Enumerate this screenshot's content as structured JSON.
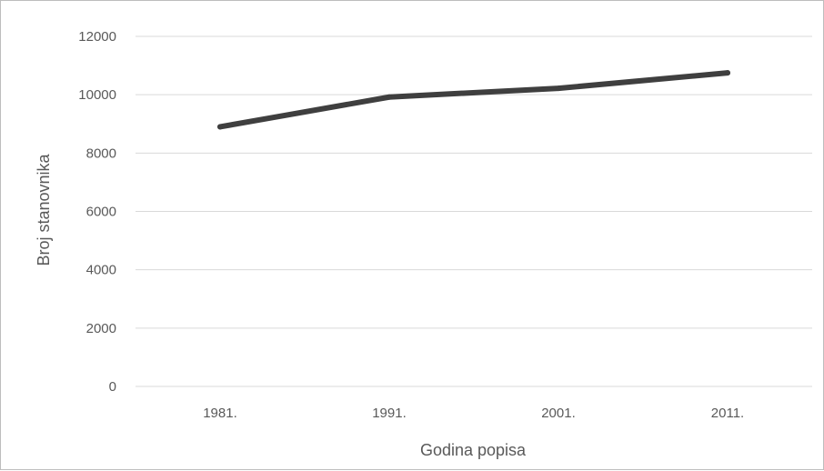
{
  "chart_data": {
    "type": "line",
    "title": "",
    "xlabel": "Godina popisa",
    "ylabel": "Broj stanovnika",
    "categories": [
      "1981.",
      "1991.",
      "2001.",
      "2011."
    ],
    "series": [
      {
        "values": [
          8900,
          9920,
          10220,
          10750
        ],
        "color": "#3f3f3f"
      }
    ],
    "ylim": [
      0,
      12000
    ],
    "yticks": [
      0,
      2000,
      4000,
      6000,
      8000,
      10000,
      12000
    ],
    "grid": true,
    "legend": "none"
  },
  "colors": {
    "line": "#3f3f3f",
    "grid": "#d9d9d9",
    "text": "#595959"
  }
}
